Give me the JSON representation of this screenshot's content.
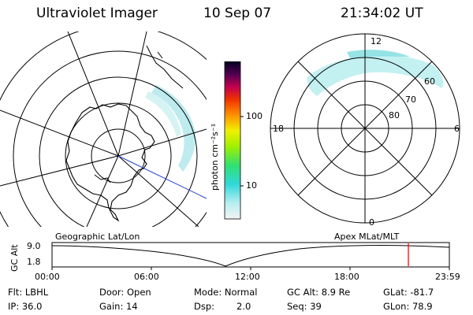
{
  "header": {
    "instrument": "Ultraviolet Imager",
    "date": "10 Sep 07",
    "time": "21:34:02 UT"
  },
  "colorbar": {
    "unit": "photon cm⁻²s⁻¹",
    "ticks": [
      "100",
      "10"
    ]
  },
  "polar_plot": {
    "mlt_labels": [
      "12",
      "18",
      "6",
      "0"
    ],
    "lat_labels": [
      "60",
      "70",
      "80"
    ]
  },
  "panel_labels": {
    "geographic": "Geographic Lat/Lon",
    "apex": "Apex MLat/MLT"
  },
  "altitude_strip": {
    "ylabel": "GC Alt",
    "y_ticks": [
      "9.0",
      "1.8"
    ],
    "x_ticks": [
      "00:00",
      "06:00",
      "12:00",
      "18:00",
      "23:59"
    ],
    "marker_time": "21:34",
    "marker_color": "#e00000",
    "curve_color": "#000000"
  },
  "info": {
    "flt": "Flt: LBHL",
    "ip": "IP: 36.0",
    "door": "Door: Open",
    "gain": "Gain: 14",
    "mode": "Mode: Normal",
    "dsp_label": "Dsp:",
    "dsp_value": "2.0",
    "gc_alt": "GC Alt: 8.9 Re",
    "seq": "Seq: 39",
    "glat": "GLat: -81.7",
    "glon": "GLon: 78.9"
  },
  "colors": {
    "aurora": "#a8e4e8",
    "aurora_dense": "#78d8dc"
  }
}
